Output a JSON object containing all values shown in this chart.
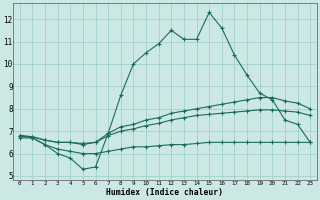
{
  "title": "",
  "xlabel": "Humidex (Indice chaleur)",
  "bg_color": "#cce8e4",
  "grid_color": "#99cccc",
  "line_color": "#1a6b5e",
  "xlim": [
    -0.5,
    23.5
  ],
  "ylim": [
    4.8,
    12.7
  ],
  "xticks": [
    0,
    1,
    2,
    3,
    4,
    5,
    6,
    7,
    8,
    9,
    10,
    11,
    12,
    13,
    14,
    15,
    16,
    17,
    18,
    19,
    20,
    21,
    22,
    23
  ],
  "yticks": [
    5,
    6,
    7,
    8,
    9,
    10,
    11,
    12
  ],
  "line1_x": [
    0,
    1,
    2,
    3,
    4,
    5,
    6,
    7,
    8,
    9,
    10,
    11,
    12,
    13,
    14,
    15,
    16,
    17,
    18,
    19,
    20,
    21,
    22,
    23
  ],
  "line1_y": [
    6.8,
    6.7,
    6.4,
    6.0,
    5.8,
    5.3,
    5.4,
    6.9,
    8.6,
    10.0,
    10.5,
    10.9,
    11.5,
    11.1,
    11.1,
    12.3,
    11.6,
    10.4,
    9.5,
    8.7,
    8.4,
    7.5,
    7.3,
    6.5
  ],
  "line2_x": [
    0,
    1,
    2,
    3,
    4,
    5,
    6,
    7,
    8,
    9,
    10,
    11,
    12,
    13,
    14,
    15,
    16,
    17,
    18,
    19,
    20,
    21,
    22,
    23
  ],
  "line2_y": [
    6.8,
    6.75,
    6.6,
    6.5,
    6.5,
    6.4,
    6.5,
    6.9,
    7.2,
    7.3,
    7.5,
    7.6,
    7.8,
    7.9,
    8.0,
    8.1,
    8.2,
    8.3,
    8.4,
    8.5,
    8.5,
    8.35,
    8.25,
    8.0
  ],
  "line3_x": [
    0,
    1,
    2,
    3,
    4,
    5,
    6,
    7,
    8,
    9,
    10,
    11,
    12,
    13,
    14,
    15,
    16,
    17,
    18,
    19,
    20,
    21,
    22,
    23
  ],
  "line3_y": [
    6.8,
    6.75,
    6.6,
    6.5,
    6.5,
    6.45,
    6.5,
    6.8,
    7.0,
    7.1,
    7.25,
    7.35,
    7.5,
    7.6,
    7.7,
    7.75,
    7.8,
    7.85,
    7.9,
    7.95,
    7.95,
    7.9,
    7.85,
    7.7
  ],
  "line4_x": [
    0,
    1,
    2,
    3,
    4,
    5,
    6,
    7,
    8,
    9,
    10,
    11,
    12,
    13,
    14,
    15,
    16,
    17,
    18,
    19,
    20,
    21,
    22,
    23
  ],
  "line4_y": [
    6.7,
    6.7,
    6.4,
    6.2,
    6.1,
    6.0,
    6.0,
    6.1,
    6.2,
    6.3,
    6.3,
    6.35,
    6.4,
    6.4,
    6.45,
    6.5,
    6.5,
    6.5,
    6.5,
    6.5,
    6.5,
    6.5,
    6.5,
    6.5
  ]
}
